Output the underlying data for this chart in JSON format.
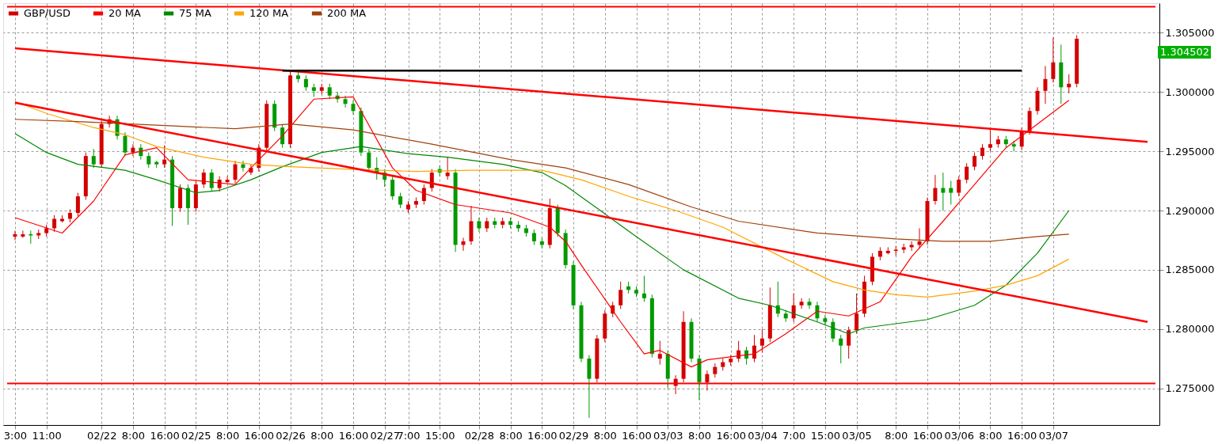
{
  "chart_data": {
    "type": "candlestick",
    "legend": "top left",
    "grid": true,
    "ylim": [
      1.2719,
      1.3075
    ],
    "categories": [
      "3:00",
      null,
      null,
      null,
      "11:00",
      null,
      null,
      null,
      null,
      null,
      null,
      "02/22",
      null,
      null,
      null,
      "8:00",
      null,
      null,
      null,
      "16:00",
      null,
      null,
      null,
      "02/25",
      null,
      null,
      null,
      "8:00",
      null,
      null,
      null,
      "16:00",
      null,
      null,
      null,
      "02/26",
      null,
      null,
      null,
      "8:00",
      null,
      null,
      null,
      "16:00",
      null,
      null,
      null,
      "02/27",
      null,
      null,
      "7:00",
      null,
      null,
      null,
      "15:00",
      null,
      null,
      null,
      null,
      "02/28",
      null,
      null,
      null,
      "8:00",
      null,
      null,
      null,
      "16:00",
      null,
      null,
      null,
      "02/29",
      null,
      null,
      null,
      "8:00",
      null,
      null,
      null,
      "16:00",
      null,
      null,
      null,
      "03/03",
      null,
      null,
      null,
      "8:00",
      null,
      null,
      null,
      "16:00",
      null,
      null,
      null,
      "03/04",
      null,
      null,
      null,
      "7:00",
      null,
      null,
      null,
      "15:00",
      null,
      null,
      null,
      "03/05",
      null,
      null,
      null,
      null,
      "8:00",
      null,
      null,
      null,
      "16:00",
      null,
      null,
      null,
      "03/06",
      null,
      null,
      null,
      "8:00",
      null,
      null,
      null,
      "16:00",
      null,
      null,
      null,
      "03/07",
      null,
      null,
      null,
      null,
      null,
      null,
      null,
      null,
      null,
      null,
      null,
      null
    ],
    "yticks": [
      {
        "value": 1.275,
        "label": "1.275000"
      },
      {
        "value": 1.28,
        "label": "1.280000"
      },
      {
        "value": 1.285,
        "label": "1.285000"
      },
      {
        "value": 1.29,
        "label": "1.290000"
      },
      {
        "value": 1.295,
        "label": "1.295000"
      },
      {
        "value": 1.3,
        "label": "1.300000"
      },
      {
        "value": 1.305,
        "label": "1.305000"
      }
    ],
    "annotations": [
      "1.304502"
    ],
    "ref_lines": [
      {
        "axis": "y",
        "value": 1.2754,
        "color": "#ff0000"
      },
      {
        "axis": "y",
        "value": 1.3072,
        "color": "#ff0000"
      }
    ],
    "series": [
      {
        "name": "GBP/USD",
        "ohlc": [
          [
            1.2878,
            1.2883,
            1.2875,
            1.288
          ],
          [
            1.2878,
            1.2883,
            1.2877,
            1.288
          ],
          [
            1.288,
            1.2883,
            1.2872,
            1.2879
          ],
          [
            1.2879,
            1.2884,
            1.2876,
            1.2881
          ],
          [
            1.2881,
            1.2888,
            1.2878,
            1.2885
          ],
          [
            1.2885,
            1.2896,
            1.2882,
            1.2893
          ],
          [
            1.2891,
            1.2896,
            1.289,
            1.2893
          ],
          [
            1.2893,
            1.2901,
            1.289,
            1.2898
          ],
          [
            1.2898,
            1.2915,
            1.2895,
            1.2912
          ],
          [
            1.2912,
            1.2949,
            1.2909,
            1.2946
          ],
          [
            1.2946,
            1.2952,
            1.2936,
            1.2939
          ],
          [
            1.2939,
            1.2976,
            1.2936,
            1.2973
          ],
          [
            1.2973,
            1.298,
            1.297,
            1.2977
          ],
          [
            1.2977,
            1.298,
            1.296,
            1.2963
          ],
          [
            1.2963,
            1.2966,
            1.2946,
            1.2949
          ],
          [
            1.2949,
            1.2956,
            1.2946,
            1.2953
          ],
          [
            1.2953,
            1.2956,
            1.2943,
            1.2946
          ],
          [
            1.2946,
            1.2949,
            1.2936,
            1.2939
          ],
          [
            1.2941,
            1.2942,
            1.2936,
            1.2939
          ],
          [
            1.2939,
            1.2955,
            1.2936,
            1.2943
          ],
          [
            1.2943,
            1.2946,
            1.2887,
            1.2902
          ],
          [
            1.2902,
            1.2922,
            1.2899,
            1.2919
          ],
          [
            1.2919,
            1.2922,
            1.2888,
            1.2902
          ],
          [
            1.2902,
            1.2925,
            1.2899,
            1.2922
          ],
          [
            1.2922,
            1.2935,
            1.2919,
            1.2932
          ],
          [
            1.2932,
            1.2935,
            1.2916,
            1.2919
          ],
          [
            1.2919,
            1.2929,
            1.2916,
            1.2926
          ],
          [
            1.2924,
            1.2929,
            1.2923,
            1.2926
          ],
          [
            1.2926,
            1.2942,
            1.2923,
            1.2939
          ],
          [
            1.2939,
            1.2942,
            1.2933,
            1.2936
          ],
          [
            1.2932,
            1.2939,
            1.293,
            1.2936
          ],
          [
            1.2936,
            1.2956,
            1.2933,
            1.2953
          ],
          [
            1.2953,
            1.2993,
            1.295,
            1.299
          ],
          [
            1.299,
            1.2993,
            1.2967,
            1.297
          ],
          [
            1.297,
            1.2973,
            1.2953,
            1.2956
          ],
          [
            1.2956,
            1.3017,
            1.2953,
            1.3014
          ],
          [
            1.3014,
            1.3017,
            1.3008,
            1.3011
          ],
          [
            1.3011,
            1.3014,
            1.3001,
            1.3004
          ],
          [
            1.3004,
            1.3007,
            1.2996,
            1.3001
          ],
          [
            1.3001,
            1.3007,
            1.2998,
            1.3004
          ],
          [
            1.3004,
            1.3007,
            1.2994,
            1.2997
          ],
          [
            1.2997,
            1.3,
            1.2991,
            1.2994
          ],
          [
            1.2994,
            1.2997,
            1.2987,
            1.299
          ],
          [
            1.299,
            1.2993,
            1.2981,
            1.2984
          ],
          [
            1.2984,
            1.2987,
            1.2946,
            1.2949
          ],
          [
            1.2949,
            1.2952,
            1.2933,
            1.2936
          ],
          [
            1.2936,
            1.2945,
            1.2926,
            1.2932
          ],
          [
            1.2932,
            1.2935,
            1.292,
            1.2926
          ],
          [
            1.2926,
            1.2929,
            1.2909,
            1.2912
          ],
          [
            1.2912,
            1.2915,
            1.2902,
            1.2905
          ],
          [
            1.2901,
            1.2908,
            1.2898,
            1.2905
          ],
          [
            1.2905,
            1.2911,
            1.2902,
            1.2908
          ],
          [
            1.2908,
            1.2922,
            1.2905,
            1.2919
          ],
          [
            1.2919,
            1.2935,
            1.2916,
            1.2932
          ],
          [
            1.2935,
            1.2938,
            1.2929,
            1.2932
          ],
          [
            1.2929,
            1.2945,
            1.2926,
            1.2932
          ],
          [
            1.2932,
            1.2935,
            1.2865,
            1.2871
          ],
          [
            1.2871,
            1.2877,
            1.2866,
            1.2874
          ],
          [
            1.2874,
            1.2904,
            1.2871,
            1.2891
          ],
          [
            1.2891,
            1.2894,
            1.2882,
            1.2885
          ],
          [
            1.2885,
            1.2894,
            1.2882,
            1.2891
          ],
          [
            1.2891,
            1.2894,
            1.2885,
            1.2888
          ],
          [
            1.2888,
            1.2894,
            1.2885,
            1.2891
          ],
          [
            1.2891,
            1.2894,
            1.2885,
            1.2888
          ],
          [
            1.2888,
            1.2891,
            1.2882,
            1.2885
          ],
          [
            1.2885,
            1.2888,
            1.2878,
            1.2881
          ],
          [
            1.2881,
            1.2884,
            1.2871,
            1.2874
          ],
          [
            1.2874,
            1.2877,
            1.2868,
            1.2871
          ],
          [
            1.2871,
            1.291,
            1.2868,
            1.2902
          ],
          [
            1.2902,
            1.2905,
            1.2878,
            1.2881
          ],
          [
            1.2881,
            1.2884,
            1.2851,
            1.2854
          ],
          [
            1.2854,
            1.2857,
            1.2817,
            1.282
          ],
          [
            1.282,
            1.2823,
            1.2772,
            1.2775
          ],
          [
            1.2775,
            1.2778,
            1.2725,
            1.2758
          ],
          [
            1.2758,
            1.2795,
            1.2755,
            1.2792
          ],
          [
            1.2792,
            1.2816,
            1.2789,
            1.2813
          ],
          [
            1.2813,
            1.2823,
            1.281,
            1.282
          ],
          [
            1.282,
            1.284,
            1.2817,
            1.2833
          ],
          [
            1.2836,
            1.284,
            1.283,
            1.2833
          ],
          [
            1.2833,
            1.2836,
            1.2827,
            1.283
          ],
          [
            1.283,
            1.2845,
            1.2823,
            1.2826
          ],
          [
            1.2826,
            1.2829,
            1.2776,
            1.2779
          ],
          [
            1.2775,
            1.279,
            1.277,
            1.2779
          ],
          [
            1.2779,
            1.2782,
            1.275,
            1.2758
          ],
          [
            1.2752,
            1.2761,
            1.2745,
            1.2758
          ],
          [
            1.2758,
            1.2815,
            1.2755,
            1.2806
          ],
          [
            1.2806,
            1.2809,
            1.2772,
            1.2775
          ],
          [
            1.2775,
            1.2778,
            1.274,
            1.2755
          ],
          [
            1.2755,
            1.2765,
            1.2748,
            1.2762
          ],
          [
            1.2762,
            1.2771,
            1.2759,
            1.2768
          ],
          [
            1.2768,
            1.2775,
            1.2765,
            1.2772
          ],
          [
            1.2772,
            1.2778,
            1.2769,
            1.2775
          ],
          [
            1.2775,
            1.279,
            1.2772,
            1.2782
          ],
          [
            1.2782,
            1.2785,
            1.277,
            1.2775
          ],
          [
            1.2775,
            1.2795,
            1.2772,
            1.2786
          ],
          [
            1.2786,
            1.28,
            1.278,
            1.2792
          ],
          [
            1.2792,
            1.2835,
            1.2789,
            1.282
          ],
          [
            1.282,
            1.284,
            1.281,
            1.2813
          ],
          [
            1.2813,
            1.2816,
            1.2806,
            1.2809
          ],
          [
            1.2809,
            1.283,
            1.2806,
            1.282
          ],
          [
            1.282,
            1.2826,
            1.2817,
            1.2823
          ],
          [
            1.2823,
            1.2826,
            1.2817,
            1.282
          ],
          [
            1.282,
            1.2823,
            1.2806,
            1.2809
          ],
          [
            1.2809,
            1.2812,
            1.2803,
            1.2806
          ],
          [
            1.2806,
            1.2809,
            1.2789,
            1.2792
          ],
          [
            1.2792,
            1.2795,
            1.2771,
            1.2786
          ],
          [
            1.2786,
            1.2802,
            1.2775,
            1.2799
          ],
          [
            1.2799,
            1.283,
            1.2796,
            1.2813
          ],
          [
            1.2813,
            1.2845,
            1.281,
            1.284
          ],
          [
            1.284,
            1.2864,
            1.2837,
            1.2861
          ],
          [
            1.2861,
            1.2869,
            1.2858,
            1.2866
          ],
          [
            1.2864,
            1.2869,
            1.2863,
            1.2866
          ],
          [
            1.2866,
            1.287,
            1.2862,
            1.2867
          ],
          [
            1.2867,
            1.2872,
            1.2864,
            1.2869
          ],
          [
            1.2869,
            1.2874,
            1.2866,
            1.2871
          ],
          [
            1.2871,
            1.2885,
            1.2868,
            1.2874
          ],
          [
            1.2874,
            1.2911,
            1.2871,
            1.2908
          ],
          [
            1.2908,
            1.293,
            1.2905,
            1.2919
          ],
          [
            1.2919,
            1.2932,
            1.29,
            1.2915
          ],
          [
            1.2919,
            1.2925,
            1.2905,
            1.2915
          ],
          [
            1.2915,
            1.2929,
            1.2912,
            1.2926
          ],
          [
            1.2926,
            1.294,
            1.2923,
            1.2937
          ],
          [
            1.2937,
            1.2949,
            1.2934,
            1.2946
          ],
          [
            1.2946,
            1.2956,
            1.2943,
            1.2953
          ],
          [
            1.2953,
            1.2969,
            1.295,
            1.2956
          ],
          [
            1.2956,
            1.2963,
            1.2953,
            1.296
          ],
          [
            1.296,
            1.2963,
            1.2953,
            1.2956
          ],
          [
            1.2956,
            1.2959,
            1.295,
            1.2954
          ],
          [
            1.2954,
            1.297,
            1.2951,
            1.2967
          ],
          [
            1.2967,
            1.2987,
            1.2964,
            1.2984
          ],
          [
            1.2984,
            1.3004,
            1.2981,
            1.3001
          ],
          [
            1.3001,
            1.3022,
            1.299,
            1.3011
          ],
          [
            1.3011,
            1.3046,
            1.3008,
            1.3025
          ],
          [
            1.3025,
            1.304,
            1.299,
            1.3004
          ],
          [
            1.3004,
            1.3015,
            1.2999,
            1.3007
          ],
          [
            1.3007,
            1.3048,
            1.3004,
            1.3045
          ],
          null,
          null,
          null,
          null,
          null,
          null,
          null,
          null,
          null
        ]
      },
      {
        "name": "20 MA",
        "type": "line",
        "color": "#ff0000",
        "values": [
          1.2894,
          null,
          null,
          null,
          null,
          null,
          1.2881,
          null,
          null,
          null,
          1.2908,
          null,
          null,
          null,
          1.2947,
          null,
          null,
          null,
          1.2953,
          null,
          null,
          null,
          1.2926,
          null,
          null,
          null,
          null,
          null,
          1.2922,
          null,
          1.2936,
          null,
          null,
          null,
          1.2963,
          null,
          null,
          null,
          1.2994,
          null,
          null,
          null,
          null,
          1.2996,
          null,
          null,
          null,
          null,
          1.2936,
          null,
          null,
          1.2917,
          null,
          null,
          null,
          null,
          1.2905,
          null,
          null,
          null,
          null,
          null,
          null,
          1.2898,
          null,
          null,
          null,
          null,
          1.2886,
          null,
          1.2874,
          null,
          1.2854,
          null,
          null,
          null,
          null,
          1.2806,
          null,
          null,
          1.2779,
          null,
          1.2782,
          null,
          null,
          null,
          1.2768,
          null,
          1.2774,
          null,
          null,
          null,
          null,
          null,
          1.2779,
          null,
          null,
          null,
          1.2796,
          null,
          null,
          null,
          1.2815,
          null,
          null,
          null,
          1.2811,
          null,
          null,
          null,
          1.2823,
          null,
          null,
          null,
          1.2861,
          null,
          null,
          null,
          1.2891,
          null,
          null,
          null,
          1.2922,
          null,
          null,
          null,
          1.2953,
          null,
          null,
          null,
          1.2973,
          null,
          null,
          null,
          1.2993,
          null,
          null,
          null,
          null,
          null,
          null,
          null,
          null,
          null,
          null
        ]
      },
      {
        "name": "75 MA",
        "type": "line",
        "color": "#008800",
        "values": [
          1.2965,
          null,
          null,
          null,
          1.2949,
          null,
          null,
          null,
          1.2939,
          null,
          null,
          null,
          null,
          null,
          1.2934,
          null,
          null,
          null,
          1.2926,
          null,
          null,
          null,
          null,
          1.2915,
          null,
          null,
          1.2917,
          null,
          null,
          null,
          1.2926,
          null,
          null,
          null,
          1.2937,
          null,
          null,
          null,
          null,
          1.2949,
          null,
          null,
          null,
          null,
          1.2954,
          null,
          null,
          null,
          null,
          null,
          1.2948,
          null,
          null,
          null,
          null,
          1.2945,
          null,
          null,
          null,
          null,
          null,
          null,
          1.2939,
          null,
          null,
          null,
          null,
          1.2932,
          null,
          null,
          1.2921,
          null,
          null,
          null,
          1.2902,
          null,
          null,
          null,
          null,
          1.2878,
          null,
          null,
          null,
          null,
          null,
          1.285,
          null,
          null,
          null,
          null,
          null,
          null,
          1.2826,
          null,
          null,
          null,
          1.282,
          null,
          null,
          null,
          null,
          null,
          1.2806,
          null,
          null,
          null,
          1.2796,
          null,
          1.2801,
          null,
          null,
          null,
          null,
          null,
          null,
          null,
          1.2808,
          null,
          null,
          null,
          null,
          null,
          1.282,
          null,
          null,
          null,
          1.2837,
          null,
          null,
          null,
          1.2864,
          null,
          null,
          null,
          1.29,
          null,
          null,
          null,
          null,
          null,
          null,
          null,
          null,
          null,
          null
        ]
      },
      {
        "name": "120 MA",
        "type": "line",
        "color": "#ffa500",
        "values": [
          1.2992,
          null,
          null,
          null,
          1.2982,
          null,
          null,
          null,
          null,
          null,
          1.297,
          null,
          null,
          null,
          1.2964,
          null,
          null,
          null,
          1.2954,
          null,
          null,
          null,
          null,
          null,
          1.2945,
          null,
          null,
          null,
          null,
          null,
          1.2939,
          null,
          null,
          null,
          null,
          1.2937,
          null,
          null,
          null,
          null,
          null,
          null,
          1.2935,
          null,
          null,
          null,
          null,
          null,
          null,
          null,
          null,
          1.2933,
          null,
          null,
          null,
          null,
          null,
          null,
          1.2934,
          null,
          null,
          null,
          null,
          null,
          null,
          null,
          null,
          1.2934,
          null,
          null,
          null,
          null,
          1.2926,
          null,
          null,
          null,
          null,
          null,
          1.2912,
          null,
          null,
          null,
          null,
          null,
          1.29,
          null,
          null,
          null,
          null,
          null,
          1.2886,
          null,
          null,
          null,
          null,
          null,
          null,
          null,
          1.2859,
          null,
          null,
          null,
          null,
          null,
          1.284,
          null,
          null,
          null,
          1.2833,
          null,
          null,
          null,
          1.2829,
          null,
          null,
          null,
          1.2827,
          null,
          null,
          null,
          null,
          null,
          1.2832,
          null,
          null,
          null,
          1.2837,
          null,
          null,
          null,
          1.2845,
          null,
          null,
          null,
          1.2859,
          null,
          null,
          null,
          null,
          null,
          null,
          null,
          null,
          null,
          null
        ]
      },
      {
        "name": "200 MA",
        "type": "line",
        "color": "#a0400a",
        "values": [
          1.2977,
          null,
          null,
          null,
          null,
          null,
          null,
          null,
          1.2975,
          null,
          null,
          null,
          null,
          null,
          null,
          null,
          null,
          null,
          1.2972,
          null,
          null,
          null,
          null,
          null,
          null,
          null,
          null,
          null,
          1.2969,
          null,
          null,
          null,
          null,
          null,
          null,
          1.2973,
          null,
          null,
          null,
          null,
          null,
          null,
          null,
          1.2968,
          null,
          null,
          null,
          null,
          null,
          null,
          null,
          null,
          null,
          1.2956,
          null,
          null,
          null,
          null,
          null,
          null,
          null,
          null,
          null,
          1.2943,
          null,
          null,
          null,
          null,
          null,
          null,
          1.2936,
          null,
          null,
          null,
          null,
          null,
          null,
          null,
          1.2922,
          null,
          null,
          null,
          null,
          null,
          null,
          null,
          1.2903,
          null,
          null,
          null,
          null,
          null,
          1.2891,
          null,
          null,
          null,
          null,
          null,
          null,
          null,
          null,
          null,
          1.2881,
          null,
          null,
          null,
          null,
          null,
          null,
          null,
          null,
          null,
          1.2876,
          null,
          null,
          null,
          null,
          null,
          1.2874,
          null,
          null,
          null,
          null,
          null,
          1.2874,
          null,
          null,
          null,
          null,
          null,
          1.2878,
          null,
          null,
          null,
          1.288,
          null,
          null,
          null,
          null,
          null,
          null,
          null,
          null,
          null,
          null
        ]
      },
      {
        "type": "line",
        "color": "#ff0000",
        "values": [
          1.3037,
          null,
          null,
          null,
          null,
          null,
          null,
          null,
          null,
          null,
          null,
          null,
          null,
          null,
          null,
          null,
          null,
          null,
          null,
          null,
          null,
          null,
          null,
          null,
          null,
          null,
          null,
          null,
          null,
          null,
          null,
          null,
          null,
          null,
          null,
          null,
          null,
          null,
          null,
          null,
          null,
          null,
          null,
          null,
          null,
          null,
          null,
          null,
          null,
          null,
          null,
          null,
          null,
          null,
          null,
          null,
          null,
          null,
          null,
          null,
          null,
          null,
          null,
          null,
          null,
          null,
          null,
          null,
          null,
          null,
          null,
          null,
          null,
          null,
          null,
          null,
          null,
          null,
          null,
          null,
          null,
          null,
          null,
          null,
          null,
          null,
          null,
          null,
          null,
          null,
          null,
          null,
          null,
          null,
          null,
          null,
          null,
          null,
          null,
          null,
          null,
          null,
          null,
          null,
          null,
          null,
          null,
          null,
          null,
          null,
          null,
          null,
          null,
          null,
          null,
          null,
          null,
          null,
          null,
          null,
          null,
          null,
          null,
          null,
          null,
          null,
          null,
          null,
          null,
          null,
          null,
          null,
          null,
          null,
          null,
          null,
          null,
          null,
          null,
          null,
          null,
          null,
          null,
          null,
          1.2958
        ]
      },
      {
        "type": "line",
        "color": "#ff0000",
        "values": [
          1.2991,
          null,
          null,
          null,
          null,
          null,
          null,
          null,
          null,
          null,
          null,
          null,
          null,
          null,
          null,
          null,
          null,
          null,
          null,
          null,
          null,
          null,
          null,
          null,
          null,
          null,
          null,
          null,
          null,
          null,
          null,
          null,
          null,
          null,
          null,
          null,
          null,
          null,
          null,
          null,
          null,
          null,
          null,
          null,
          null,
          null,
          null,
          null,
          null,
          null,
          null,
          null,
          null,
          null,
          null,
          null,
          null,
          null,
          null,
          null,
          null,
          null,
          null,
          null,
          null,
          null,
          null,
          null,
          null,
          null,
          null,
          null,
          null,
          null,
          null,
          null,
          null,
          null,
          null,
          null,
          null,
          null,
          null,
          null,
          null,
          null,
          null,
          null,
          null,
          null,
          null,
          null,
          null,
          null,
          null,
          null,
          null,
          null,
          null,
          null,
          null,
          null,
          null,
          null,
          null,
          null,
          null,
          null,
          null,
          null,
          null,
          null,
          null,
          null,
          null,
          null,
          null,
          null,
          null,
          null,
          null,
          null,
          null,
          null,
          null,
          null,
          null,
          null,
          null,
          null,
          null,
          null,
          null,
          null,
          null,
          null,
          null,
          null,
          null,
          null,
          null,
          null,
          null,
          null,
          1.2806
        ]
      },
      {
        "type": "line",
        "color": "#000000",
        "values": [
          null,
          null,
          null,
          null,
          null,
          null,
          null,
          null,
          null,
          null,
          null,
          null,
          null,
          null,
          null,
          null,
          null,
          null,
          null,
          null,
          null,
          null,
          null,
          null,
          null,
          null,
          null,
          null,
          null,
          null,
          null,
          null,
          null,
          null,
          1.3018,
          null,
          null,
          null,
          null,
          null,
          null,
          null,
          null,
          null,
          null,
          null,
          null,
          null,
          null,
          null,
          null,
          null,
          null,
          null,
          null,
          null,
          null,
          null,
          null,
          null,
          null,
          null,
          null,
          null,
          null,
          null,
          null,
          null,
          null,
          null,
          null,
          null,
          null,
          null,
          null,
          null,
          null,
          null,
          null,
          null,
          null,
          null,
          null,
          null,
          null,
          null,
          null,
          null,
          null,
          null,
          null,
          null,
          null,
          null,
          null,
          null,
          null,
          null,
          null,
          null,
          null,
          null,
          null,
          null,
          null,
          null,
          null,
          null,
          null,
          null,
          null,
          null,
          null,
          null,
          null,
          null,
          null,
          null,
          null,
          null,
          null,
          null,
          null,
          null,
          null,
          null,
          null,
          null,
          1.3018,
          null,
          null,
          null,
          null,
          null,
          null,
          null,
          null,
          null,
          null,
          null,
          null,
          null,
          null,
          null,
          null
        ]
      }
    ]
  }
}
